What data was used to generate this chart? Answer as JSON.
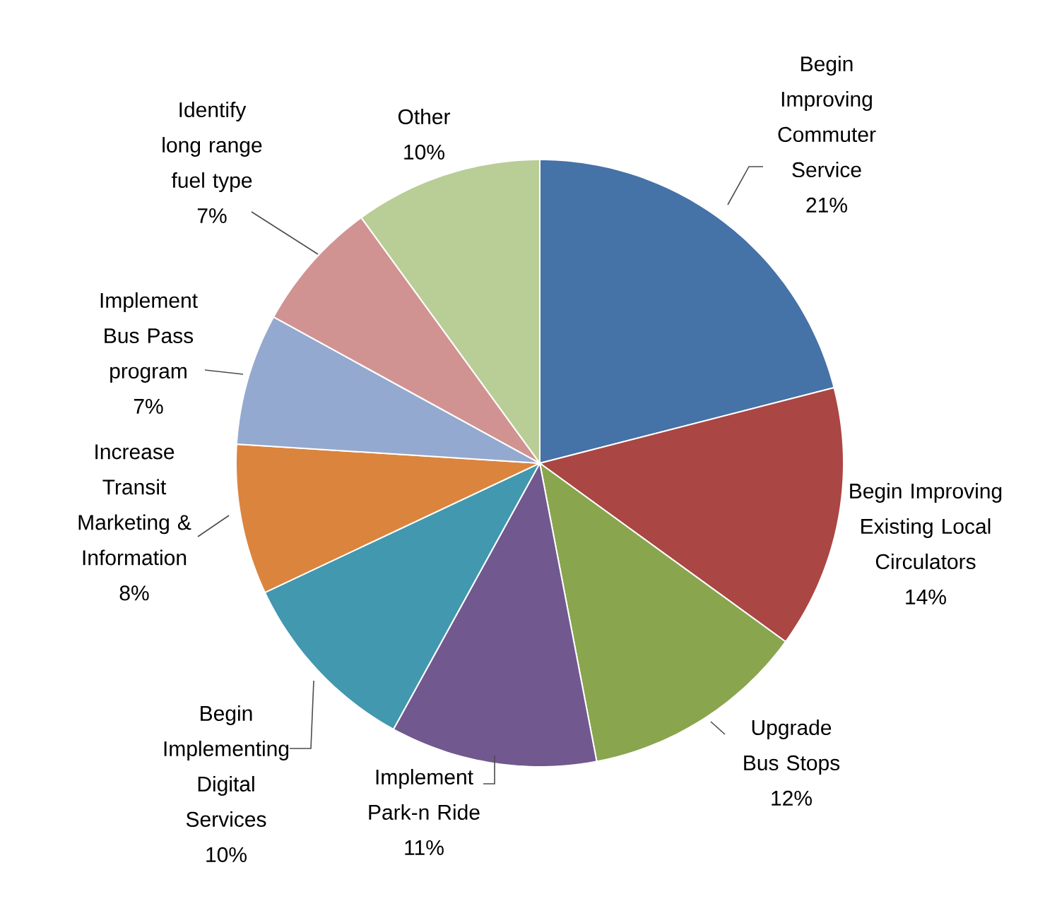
{
  "chart_data": {
    "type": "pie",
    "categories": [
      "Begin Improving Commuter Service",
      "Begin Improving Existing Local Circulators",
      "Upgrade Bus Stops",
      "Implement Park-n Ride",
      "Begin Implementing Digital Services",
      "Increase Transit Marketing & Information",
      "Implement Bus Pass program",
      "Identify long range fuel type",
      "Other"
    ],
    "values": [
      21,
      14,
      12,
      11,
      10,
      8,
      7,
      7,
      10
    ],
    "value_labels": [
      "21%",
      "14%",
      "12%",
      "11%",
      "10%",
      "8%",
      "7%",
      "7%",
      "10%"
    ],
    "colors": [
      "#4572a7",
      "#aa4643",
      "#89a54e",
      "#71588f",
      "#4198af",
      "#db843d",
      "#93a9cf",
      "#d19392",
      "#b9cd96"
    ]
  }
}
